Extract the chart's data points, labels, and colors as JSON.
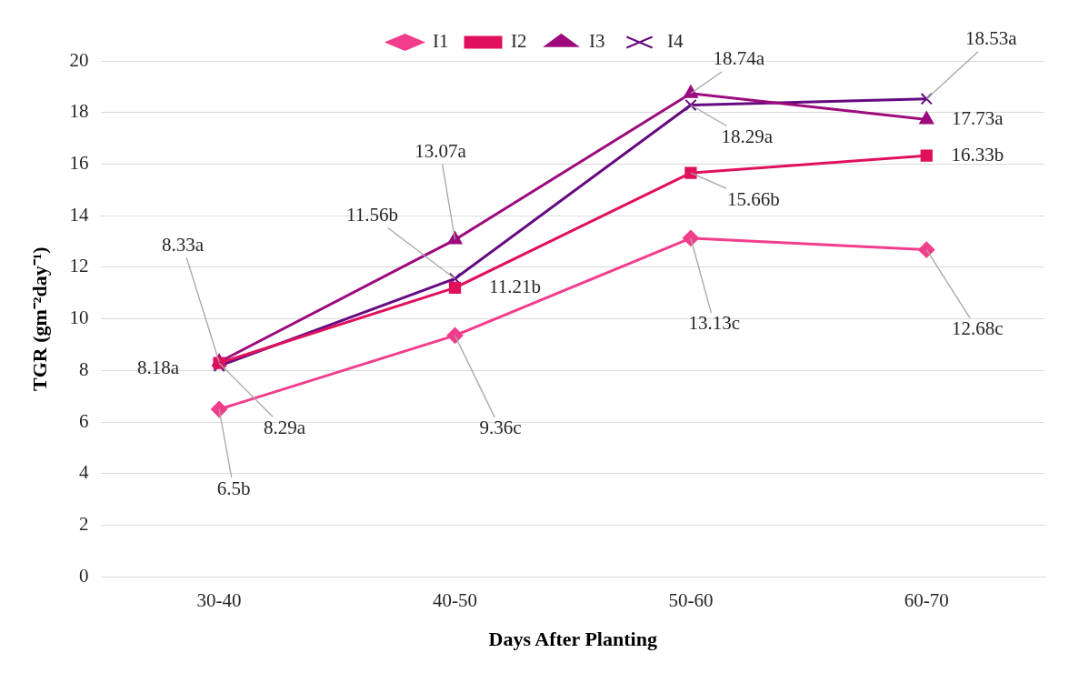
{
  "chart_data": {
    "type": "line",
    "xlabel": "Days After Planting",
    "ylabel": "TGR (gm⁻²day⁻¹)",
    "categories": [
      "30-40",
      "40-50",
      "50-60",
      "60-70"
    ],
    "series": [
      {
        "name": "I1",
        "color": "#f23d8c",
        "marker": "diamond",
        "values": [
          6.5,
          9.36,
          13.13,
          12.68
        ],
        "value_labels": [
          "6.5b",
          "9.36c",
          "13.13c",
          "12.68c"
        ]
      },
      {
        "name": "I2",
        "color": "#e0105c",
        "marker": "square",
        "values": [
          8.29,
          11.21,
          15.66,
          16.33
        ],
        "value_labels": [
          "8.29a",
          "11.21b",
          "15.66b",
          "16.33b"
        ]
      },
      {
        "name": "I3",
        "color": "#9c0a7d",
        "marker": "triangle",
        "values": [
          8.33,
          13.07,
          18.74,
          17.73
        ],
        "value_labels": [
          "8.33a",
          "13.07a",
          "18.74a",
          "17.73a"
        ]
      },
      {
        "name": "I4",
        "color": "#650a80",
        "marker": "cross",
        "values": [
          8.18,
          11.56,
          18.29,
          18.53
        ],
        "value_labels": [
          "8.18a",
          "11.56b",
          "18.29a",
          "18.53a"
        ]
      }
    ],
    "ylim": [
      0,
      20
    ],
    "yticks": [
      0,
      2,
      4,
      6,
      8,
      10,
      12,
      14,
      16,
      18,
      20
    ],
    "grid": "y",
    "legend": "top",
    "line_style": "solid"
  }
}
